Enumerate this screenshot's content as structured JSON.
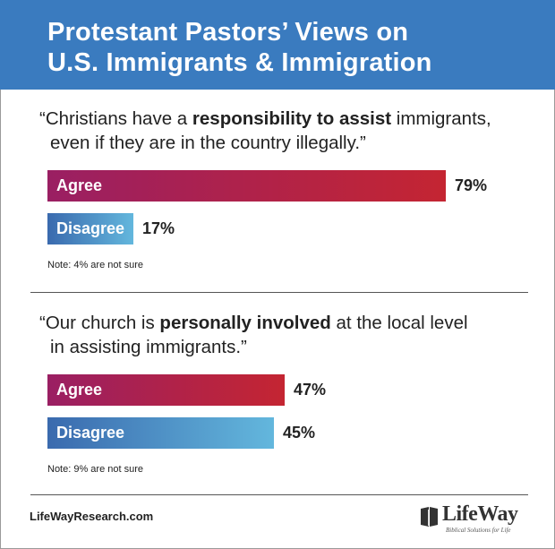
{
  "header": {
    "title_line1": "Protestant Pastors’ Views on",
    "title_line2": "U.S. Immigrants & Immigration"
  },
  "chart_data": [
    {
      "type": "bar",
      "statement": {
        "line1_pre": "“Christians have a ",
        "line1_bold": "responsibility to assist",
        "line1_post": " immigrants,",
        "line2": "even if they are in the country illegally.”"
      },
      "categories": [
        "Agree",
        "Disagree"
      ],
      "values": [
        79,
        17
      ],
      "value_labels": [
        "79%",
        "17%"
      ],
      "note": "Note: 4% are not sure"
    },
    {
      "type": "bar",
      "statement": {
        "line1_pre": "“Our church is ",
        "line1_bold": "personally involved",
        "line1_post": " at the local level",
        "line2": "in assisting immigrants.”"
      },
      "categories": [
        "Agree",
        "Disagree"
      ],
      "values": [
        47,
        45
      ],
      "value_labels": [
        "47%",
        "45%"
      ],
      "note": "Note: 9% are not sure"
    }
  ],
  "footer": {
    "url": "LifeWayResearch.com",
    "logo_name": "LifeWay",
    "logo_tagline": "Biblical Solutions for Life"
  },
  "colors": {
    "header_bg": "#3a7bbf",
    "agree_start": "#9a1f63",
    "agree_end": "#c42532",
    "disagree_start": "#3a6aae",
    "disagree_end": "#63b7dd"
  }
}
